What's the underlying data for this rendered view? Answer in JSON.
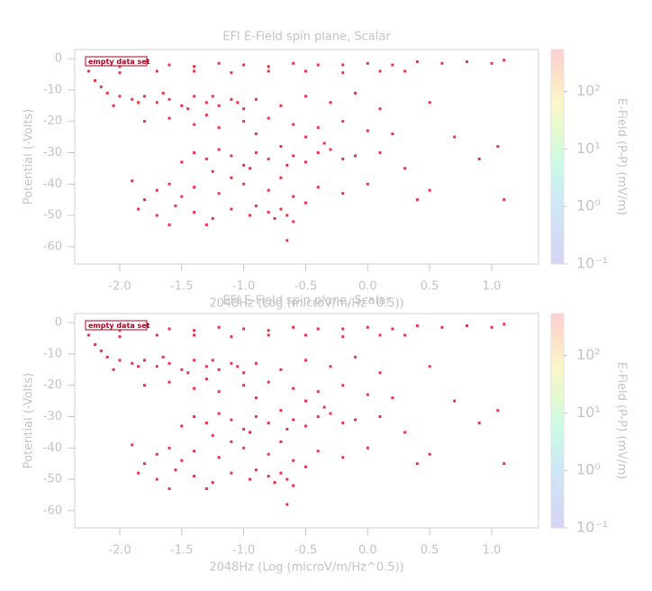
{
  "chart_data": [
    {
      "type": "scatter",
      "title": "EFI  E-Field spin plane, Scalar",
      "xlabel": "2048Hz (Log (microV/m/Hz^0.5))",
      "ylabel": "Potential (-Volts)",
      "annotation": "empty data set",
      "color": "#e8334a",
      "x": [
        -2.2,
        -2.0,
        -1.8,
        -1.6,
        -1.4,
        -1.2,
        -1.0,
        -0.8,
        -0.6,
        -0.4,
        -0.2,
        0,
        0.2,
        0.4,
        0.6,
        0.8,
        1.0,
        1.1,
        -2.25,
        -2.0,
        -1.7,
        -1.4,
        -1.1,
        -0.8,
        -0.5,
        -0.2,
        0.1,
        0.3,
        -2.2,
        -2.15,
        -2.1,
        -2.0,
        -1.9,
        -1.8,
        -1.7,
        -1.6,
        -1.5,
        -1.4,
        -1.3,
        -1.2,
        -1.1,
        -1.0,
        -2.05,
        -1.85,
        -1.65,
        -1.45,
        -1.25,
        -1.05,
        -0.9,
        -0.7,
        -0.5,
        -0.3,
        -0.1,
        0.1,
        -1.8,
        -1.6,
        -1.4,
        -1.2,
        -1.0,
        -0.8,
        -0.6,
        -0.4,
        -0.2,
        0.0,
        0.2,
        -1.3,
        -0.9,
        -0.5,
        -1.5,
        -1.4,
        -1.3,
        -1.2,
        -1.1,
        -1.0,
        -0.9,
        -0.8,
        -0.7,
        -0.6,
        -0.5,
        -0.4,
        -0.3,
        -0.2,
        -0.1,
        0.1,
        0.3,
        -1.25,
        -0.95,
        -0.65,
        -0.35,
        -1.9,
        -1.7,
        -1.6,
        -1.5,
        -1.4,
        -1.2,
        -1.0,
        -0.8,
        -0.6,
        -0.4,
        -0.2,
        0.0,
        0.4,
        -1.8,
        -1.1,
        -0.7,
        -1.85,
        -1.7,
        -1.55,
        -1.4,
        -1.25,
        -1.1,
        -0.95,
        -0.8,
        -0.75,
        -0.7,
        -0.65,
        -0.6,
        -0.5,
        -1.6,
        -1.3,
        -0.9,
        0.7,
        0.9,
        1.05,
        1.1,
        0.5,
        -0.65,
        0.5
      ],
      "values": [
        -2,
        -2.5,
        -1.5,
        -2,
        -2.5,
        -1.5,
        -2,
        -2.5,
        -1.5,
        -2,
        -2,
        -1.5,
        -2,
        -1,
        -1.5,
        -1,
        -1.5,
        -0.5,
        -4,
        -4.5,
        -4,
        -4,
        -4.5,
        -4,
        -4,
        -4.5,
        -4,
        -4,
        -7,
        -9,
        -11,
        -12,
        -13,
        -12,
        -14,
        -13,
        -15,
        -12,
        -14,
        -15,
        -13,
        -16,
        -15,
        -14,
        -11,
        -16,
        -12,
        -14,
        -13,
        -15,
        -12,
        -14,
        -11,
        -16,
        -20,
        -19,
        -21,
        -22,
        -20,
        -19,
        -21,
        -22,
        -20,
        -23,
        -24,
        -18,
        -24,
        -25,
        -33,
        -30,
        -32,
        -29,
        -31,
        -34,
        -30,
        -32,
        -28,
        -31,
        -33,
        -30,
        -29,
        -32,
        -31,
        -30,
        -35,
        -36,
        -35,
        -34,
        -27,
        -39,
        -42,
        -40,
        -44,
        -41,
        -43,
        -40,
        -42,
        -44,
        -41,
        -43,
        -40,
        -45,
        -45,
        -38,
        -38,
        -48,
        -50,
        -47,
        -49,
        -51,
        -48,
        -50,
        -49,
        -51,
        -48,
        -50,
        -52,
        -46,
        -53,
        -53,
        -47,
        -25,
        -32,
        -28,
        -45,
        -42,
        -58,
        -14
      ],
      "xlim": [
        -2.363,
        1.378
      ],
      "ylim": [
        -65.5,
        2.9
      ],
      "xticks": [
        {
          "value": -2,
          "label": "-2.0"
        },
        -1.5,
        {
          "value": -1,
          "label": "-1.0"
        },
        -0.5,
        {
          "value": 0,
          "label": "0.0"
        },
        0.5,
        {
          "value": 1,
          "label": "1.0"
        }
      ],
      "yticks": [
        0,
        -10,
        -20,
        -30,
        -40,
        -50,
        -60
      ],
      "colorbar": {
        "label": "E-Field (P-P) (mV/m)",
        "log": true,
        "lim": [
          0.1,
          537
        ],
        "ticks": [
          {
            "value": 0.1,
            "label": "10⁻¹"
          },
          {
            "value": 1,
            "label": "10⁰"
          },
          {
            "value": 10,
            "label": "10¹"
          },
          {
            "value": 100,
            "label": "10²"
          }
        ]
      }
    },
    {
      "type": "scatter",
      "title": "EFI  E-Field spin plane, Scalar",
      "xlabel": "2048Hz (Log (microV/m/Hz^0.5))",
      "ylabel": "Potential (-Volts)",
      "annotation": "empty data set",
      "color": "#e8334a",
      "x": [
        -2.2,
        -2.0,
        -1.8,
        -1.6,
        -1.4,
        -1.2,
        -1.0,
        -0.8,
        -0.6,
        -0.4,
        -0.2,
        0,
        0.2,
        0.4,
        0.6,
        0.8,
        1.0,
        1.1,
        -2.25,
        -2.0,
        -1.7,
        -1.4,
        -1.1,
        -0.8,
        -0.5,
        -0.2,
        0.1,
        0.3,
        -2.2,
        -2.15,
        -2.1,
        -2.0,
        -1.9,
        -1.8,
        -1.7,
        -1.6,
        -1.5,
        -1.4,
        -1.3,
        -1.2,
        -1.1,
        -1.0,
        -2.05,
        -1.85,
        -1.65,
        -1.45,
        -1.25,
        -1.05,
        -0.9,
        -0.7,
        -0.5,
        -0.3,
        -0.1,
        0.1,
        -1.8,
        -1.6,
        -1.4,
        -1.2,
        -1.0,
        -0.8,
        -0.6,
        -0.4,
        -0.2,
        0.0,
        0.2,
        -1.3,
        -0.9,
        -0.5,
        -1.5,
        -1.4,
        -1.3,
        -1.2,
        -1.1,
        -1.0,
        -0.9,
        -0.8,
        -0.7,
        -0.6,
        -0.5,
        -0.4,
        -0.3,
        -0.2,
        -0.1,
        0.1,
        0.3,
        -1.25,
        -0.95,
        -0.65,
        -0.35,
        -1.9,
        -1.7,
        -1.6,
        -1.5,
        -1.4,
        -1.2,
        -1.0,
        -0.8,
        -0.6,
        -0.4,
        -0.2,
        0.0,
        0.4,
        -1.8,
        -1.1,
        -0.7,
        -1.85,
        -1.7,
        -1.55,
        -1.4,
        -1.25,
        -1.1,
        -0.95,
        -0.8,
        -0.75,
        -0.7,
        -0.65,
        -0.6,
        -0.5,
        -1.6,
        -1.3,
        -0.9,
        0.7,
        0.9,
        1.05,
        1.1,
        0.5,
        -0.65,
        0.5
      ],
      "values": [
        -2,
        -2.5,
        -1.5,
        -2,
        -2.5,
        -1.5,
        -2,
        -2.5,
        -1.5,
        -2,
        -2,
        -1.5,
        -2,
        -1,
        -1.5,
        -1,
        -1.5,
        -0.5,
        -4,
        -4.5,
        -4,
        -4,
        -4.5,
        -4,
        -4,
        -4.5,
        -4,
        -4,
        -7,
        -9,
        -11,
        -12,
        -13,
        -12,
        -14,
        -13,
        -15,
        -12,
        -14,
        -15,
        -13,
        -16,
        -15,
        -14,
        -11,
        -16,
        -12,
        -14,
        -13,
        -15,
        -12,
        -14,
        -11,
        -16,
        -20,
        -19,
        -21,
        -22,
        -20,
        -19,
        -21,
        -22,
        -20,
        -23,
        -24,
        -18,
        -24,
        -25,
        -33,
        -30,
        -32,
        -29,
        -31,
        -34,
        -30,
        -32,
        -28,
        -31,
        -33,
        -30,
        -29,
        -32,
        -31,
        -30,
        -35,
        -36,
        -35,
        -34,
        -27,
        -39,
        -42,
        -40,
        -44,
        -41,
        -43,
        -40,
        -42,
        -44,
        -41,
        -43,
        -40,
        -45,
        -45,
        -38,
        -38,
        -48,
        -50,
        -47,
        -49,
        -51,
        -48,
        -50,
        -49,
        -51,
        -48,
        -50,
        -52,
        -46,
        -53,
        -53,
        -47,
        -25,
        -32,
        -28,
        -45,
        -42,
        -58,
        -14
      ],
      "xlim": [
        -2.363,
        1.378
      ],
      "ylim": [
        -65.5,
        2.9
      ],
      "xticks": [
        {
          "value": -2,
          "label": "-2.0"
        },
        -1.5,
        {
          "value": -1,
          "label": "-1.0"
        },
        -0.5,
        {
          "value": 0,
          "label": "0.0"
        },
        0.5,
        {
          "value": 1,
          "label": "1.0"
        }
      ],
      "yticks": [
        0,
        -10,
        -20,
        -30,
        -40,
        -50,
        -60
      ],
      "colorbar": {
        "label": "E-Field (P-P) (mV/m)",
        "log": true,
        "lim": [
          0.1,
          537
        ],
        "ticks": [
          {
            "value": 0.1,
            "label": "10⁻¹"
          },
          {
            "value": 1,
            "label": "10⁰"
          },
          {
            "value": 10,
            "label": "10¹"
          },
          {
            "value": 100,
            "label": "10²"
          }
        ]
      }
    }
  ]
}
